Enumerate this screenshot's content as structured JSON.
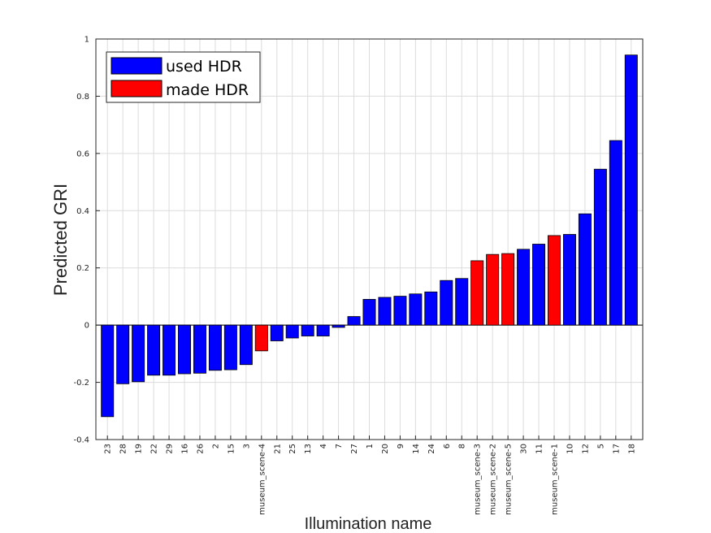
{
  "chart_data": {
    "type": "bar",
    "xlabel": "Illumination name",
    "ylabel": "Predicted GRI",
    "ylim": [
      -0.4,
      1
    ],
    "yticks": [
      "-0.4",
      "-0.2",
      "0",
      "0.2",
      "0.4",
      "0.6",
      "0.8",
      "1"
    ],
    "grid": true,
    "legend_position": "top-left",
    "legend": [
      {
        "name": "used HDR",
        "color": "#0000ff"
      },
      {
        "name": "made HDR",
        "color": "#ff0000"
      }
    ],
    "categories": [
      "23",
      "28",
      "19",
      "22",
      "29",
      "16",
      "26",
      "2",
      "15",
      "3",
      "museum_scene-4",
      "21",
      "25",
      "13",
      "4",
      "7",
      "27",
      "1",
      "20",
      "9",
      "14",
      "24",
      "6",
      "8",
      "museum_scene-3",
      "museum_scene-2",
      "museum_scene-5",
      "30",
      "11",
      "museum_scene-1",
      "10",
      "12",
      "5",
      "17",
      "18"
    ],
    "display_labels": [
      "23",
      "28",
      "19",
      "22",
      "29",
      "16",
      "26",
      "2",
      "15",
      "3",
      "museum_scene-4",
      "21",
      "25",
      "13",
      "4",
      "7",
      "27",
      "1",
      "20",
      "9",
      "14",
      "24",
      "6",
      "8",
      "museum_scene-3",
      "museum_scene-2",
      "museum_scene-5",
      "30",
      "11",
      "museum_scene-1",
      "10",
      "12",
      "5",
      "17",
      "18"
    ],
    "values": [
      -0.32,
      -0.205,
      -0.198,
      -0.175,
      -0.175,
      -0.17,
      -0.168,
      -0.158,
      -0.156,
      -0.138,
      -0.09,
      -0.055,
      -0.045,
      -0.038,
      -0.038,
      -0.008,
      0.03,
      0.09,
      0.097,
      0.101,
      0.109,
      0.116,
      0.156,
      0.163,
      0.225,
      0.247,
      0.25,
      0.265,
      0.283,
      0.313,
      0.317,
      0.389,
      0.545,
      0.645,
      0.944
    ],
    "groups": [
      "used HDR",
      "used HDR",
      "used HDR",
      "used HDR",
      "used HDR",
      "used HDR",
      "used HDR",
      "used HDR",
      "used HDR",
      "used HDR",
      "made HDR",
      "used HDR",
      "used HDR",
      "used HDR",
      "used HDR",
      "used HDR",
      "used HDR",
      "used HDR",
      "used HDR",
      "used HDR",
      "used HDR",
      "used HDR",
      "used HDR",
      "used HDR",
      "made HDR",
      "made HDR",
      "made HDR",
      "used HDR",
      "used HDR",
      "made HDR",
      "used HDR",
      "used HDR",
      "used HDR",
      "used HDR",
      "used HDR"
    ]
  }
}
